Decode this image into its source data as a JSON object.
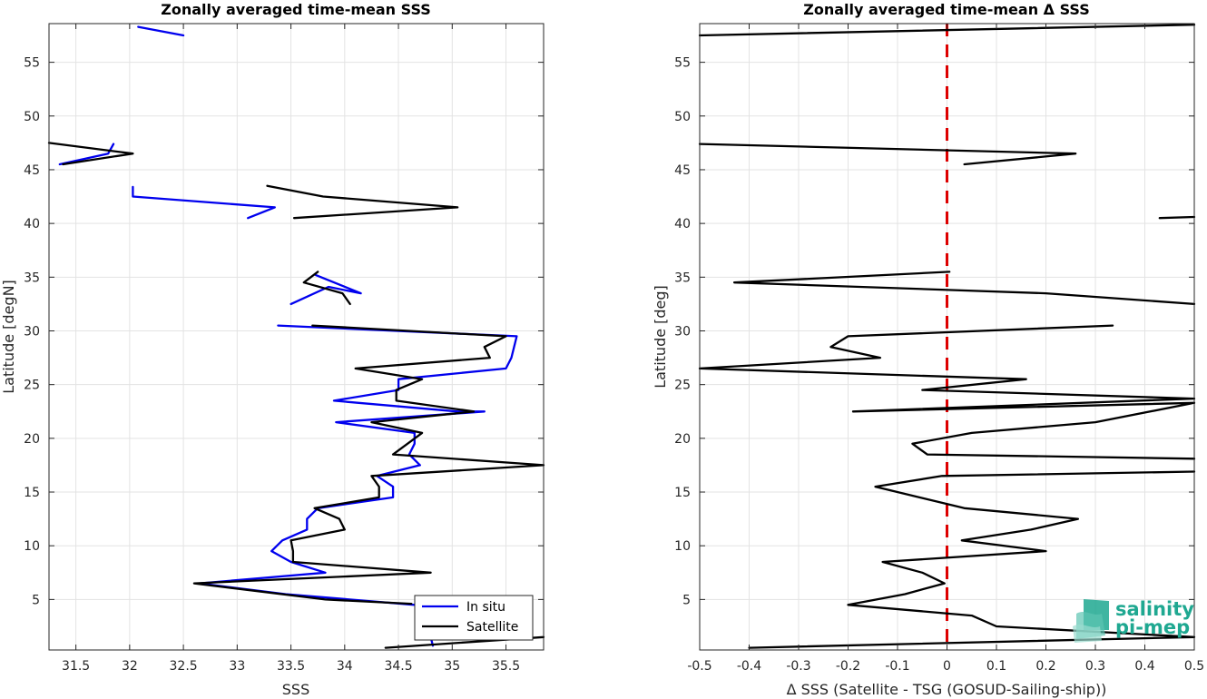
{
  "chart_data": [
    {
      "type": "line",
      "title": "Zonally averaged time-mean SSS",
      "xlabel": "SSS",
      "ylabel": "Latitude [degN]",
      "xlim": [
        31.25,
        35.85
      ],
      "ylim": [
        0.3,
        58.6
      ],
      "xticks": [
        31.5,
        32,
        32.5,
        33,
        33.5,
        34,
        34.5,
        35,
        35.5
      ],
      "xtick_labels": [
        "31.5",
        "32",
        "32.5",
        "33",
        "33.5",
        "34",
        "34.5",
        "35",
        "35.5"
      ],
      "yticks": [
        5,
        10,
        15,
        20,
        25,
        30,
        35,
        40,
        45,
        50,
        55
      ],
      "ytick_labels": [
        "5",
        "10",
        "15",
        "20",
        "25",
        "30",
        "35",
        "40",
        "45",
        "50",
        "55"
      ],
      "grid": true,
      "legend_position": "bottom-right",
      "series": [
        {
          "name": "In situ",
          "color": "#0000ee",
          "segments": [
            [
              [
                32.08,
                58.3
              ],
              [
                32.5,
                57.5
              ]
            ],
            [
              [
                31.35,
                45.5
              ],
              [
                31.8,
                46.5
              ],
              [
                31.85,
                47.4
              ]
            ],
            [
              [
                32.03,
                43.4
              ],
              [
                32.03,
                42.5
              ],
              [
                33.35,
                41.5
              ],
              [
                33.1,
                40.5
              ]
            ],
            [
              [
                33.5,
                32.5
              ],
              [
                33.85,
                34.1
              ],
              [
                34.15,
                33.5
              ],
              [
                33.73,
                35.2
              ]
            ],
            [
              [
                33.38,
                30.5
              ],
              [
                35.6,
                29.5
              ],
              [
                35.55,
                27.5
              ],
              [
                35.5,
                26.5
              ],
              [
                34.5,
                25.5
              ],
              [
                34.5,
                24.5
              ],
              [
                33.9,
                23.5
              ],
              [
                35.05,
                22.5
              ],
              [
                35.3,
                22.5
              ],
              [
                33.92,
                21.5
              ],
              [
                34.65,
                20.5
              ],
              [
                34.65,
                19.5
              ],
              [
                34.6,
                18.5
              ],
              [
                34.7,
                17.5
              ],
              [
                34.3,
                16.5
              ],
              [
                34.45,
                15.5
              ],
              [
                34.45,
                14.5
              ],
              [
                33.75,
                13.5
              ],
              [
                33.65,
                12.5
              ],
              [
                33.65,
                11.5
              ],
              [
                33.42,
                10.5
              ],
              [
                33.32,
                9.5
              ],
              [
                33.5,
                8.5
              ],
              [
                33.82,
                7.5
              ],
              [
                32.65,
                6.5
              ],
              [
                33.45,
                5.5
              ],
              [
                34.65,
                4.5
              ]
            ],
            [
              [
                34.8,
                1.5
              ],
              [
                34.82,
                0.7
              ]
            ]
          ]
        },
        {
          "name": "Satellite",
          "color": "#000000",
          "segments": [
            [
              [
                31.25,
                47.5
              ],
              [
                32.03,
                46.5
              ],
              [
                31.38,
                45.5
              ]
            ],
            [
              [
                33.28,
                43.5
              ],
              [
                33.8,
                42.5
              ],
              [
                35.05,
                41.5
              ],
              [
                33.53,
                40.5
              ]
            ],
            [
              [
                33.75,
                35.5
              ],
              [
                33.62,
                34.5
              ],
              [
                33.98,
                33.5
              ],
              [
                34.05,
                32.5
              ]
            ],
            [
              [
                33.7,
                30.5
              ],
              [
                35.5,
                29.5
              ],
              [
                35.3,
                28.5
              ],
              [
                35.35,
                27.5
              ],
              [
                34.1,
                26.5
              ],
              [
                34.72,
                25.5
              ],
              [
                34.48,
                24.5
              ],
              [
                34.48,
                23.5
              ],
              [
                35.2,
                22.5
              ],
              [
                34.25,
                21.5
              ],
              [
                34.72,
                20.5
              ],
              [
                34.45,
                18.5
              ],
              [
                35.85,
                17.5
              ],
              [
                34.25,
                16.5
              ],
              [
                34.32,
                15.5
              ],
              [
                34.32,
                14.5
              ],
              [
                33.72,
                13.5
              ],
              [
                33.95,
                12.5
              ],
              [
                34.0,
                11.5
              ],
              [
                33.5,
                10.5
              ],
              [
                33.52,
                9.5
              ],
              [
                33.52,
                8.5
              ],
              [
                34.8,
                7.5
              ],
              [
                32.6,
                6.5
              ],
              [
                33.82,
                5.0
              ],
              [
                34.62,
                4.6
              ]
            ],
            [
              [
                35.85,
                1.5
              ],
              [
                34.38,
                0.5
              ]
            ]
          ]
        }
      ]
    },
    {
      "type": "line",
      "title": "Zonally averaged time-mean Δ SSS",
      "xlabel": "Δ SSS (Satellite - TSG (GOSUD-Sailing-ship))",
      "ylabel": "Latitude [deg]",
      "xlim": [
        -0.5,
        0.5
      ],
      "ylim": [
        0.3,
        58.6
      ],
      "xticks": [
        -0.5,
        -0.4,
        -0.3,
        -0.2,
        -0.1,
        0,
        0.1,
        0.2,
        0.3,
        0.4,
        0.5
      ],
      "xtick_labels": [
        "-0.5",
        "-0.4",
        "-0.3",
        "-0.2",
        "-0.1",
        "0",
        "0.1",
        "0.2",
        "0.3",
        "0.4",
        "0.5"
      ],
      "yticks": [
        5,
        10,
        15,
        20,
        25,
        30,
        35,
        40,
        45,
        50,
        55
      ],
      "ytick_labels": [
        "5",
        "10",
        "15",
        "20",
        "25",
        "30",
        "35",
        "40",
        "45",
        "50",
        "55"
      ],
      "grid": true,
      "reference_line": {
        "x": 0,
        "color": "#dd0000",
        "style": "dashed"
      },
      "series": [
        {
          "color": "#000000",
          "segments": [
            [
              [
                -0.5,
                57.5
              ],
              [
                0.5,
                58.5
              ]
            ],
            [
              [
                -0.5,
                47.4
              ],
              [
                0.26,
                46.5
              ],
              [
                0.035,
                45.5
              ]
            ],
            [
              [
                0.43,
                40.5
              ],
              [
                0.5,
                40.6
              ]
            ],
            [
              [
                0.005,
                35.5
              ],
              [
                -0.43,
                34.5
              ],
              [
                0.2,
                33.5
              ],
              [
                0.5,
                32.5
              ]
            ],
            [
              [
                0.335,
                30.5
              ],
              [
                -0.2,
                29.5
              ],
              [
                -0.235,
                28.5
              ],
              [
                -0.135,
                27.5
              ],
              [
                -0.5,
                26.5
              ],
              [
                0.16,
                25.5
              ],
              [
                -0.05,
                24.5
              ],
              [
                0.5,
                23.7
              ],
              [
                -0.19,
                22.5
              ],
              [
                0.5,
                23.3
              ],
              [
                0.3,
                21.5
              ],
              [
                0.05,
                20.5
              ],
              [
                -0.07,
                19.5
              ],
              [
                -0.04,
                18.5
              ],
              [
                0.5,
                18.1
              ]
            ],
            [
              [
                0.5,
                16.9
              ],
              [
                -0.01,
                16.5
              ],
              [
                -0.145,
                15.5
              ],
              [
                0.035,
                13.5
              ],
              [
                0.265,
                12.5
              ],
              [
                0.17,
                11.5
              ],
              [
                0.03,
                10.5
              ],
              [
                0.2,
                9.5
              ],
              [
                -0.13,
                8.5
              ],
              [
                -0.05,
                7.5
              ],
              [
                -0.005,
                6.5
              ],
              [
                -0.085,
                5.5
              ],
              [
                -0.2,
                4.5
              ],
              [
                0.05,
                3.5
              ],
              [
                0.1,
                2.5
              ],
              [
                0.5,
                1.5
              ],
              [
                -0.4,
                0.5
              ]
            ]
          ]
        }
      ]
    }
  ],
  "legend": {
    "entries": [
      {
        "label": "In situ",
        "color": "#0000ee"
      },
      {
        "label": "Satellite",
        "color": "#000000"
      }
    ]
  },
  "logo": {
    "line1": "salinity",
    "line2": "pi-mep"
  }
}
